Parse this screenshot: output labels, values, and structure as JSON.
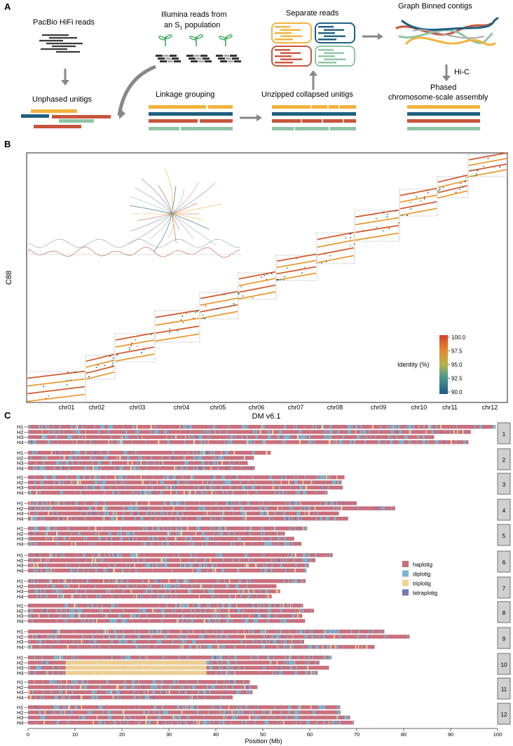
{
  "panels": {
    "a": "A",
    "b": "B",
    "c": "C"
  },
  "panel_a": {
    "hifi": "PacBio HiFi reads",
    "illumina_line1": "Illumina reads from",
    "illumina_line2_pre": "an S",
    "illumina_sub": "1",
    "illumina_line2_post": " population",
    "separate": "Separate reads",
    "graph_binned": "Graph Binned contigs",
    "unphased": "Unphased unitigs",
    "linkage": "Linkage grouping",
    "unzipped": "Unzipped collapsed unitigs",
    "hic": "Hi-C",
    "phased_line1": "Phased",
    "phased_line2": "chromosome-scale assembly",
    "colors": {
      "yellow": "#f2b33d",
      "blue": "#1f5f80",
      "red": "#c8553d",
      "teal": "#8fc4a4",
      "gray": "#888888",
      "dark": "#3a3a3a"
    }
  },
  "panel_b": {
    "ylabel": "C88",
    "xlabel": "DM v6.1",
    "chromosomes": [
      "chr01",
      "chr02",
      "chr03",
      "chr04",
      "chr05",
      "chr06",
      "chr07",
      "chr08",
      "chr09",
      "chr10",
      "chr11",
      "chr12"
    ],
    "legend_title": "Identity (%)",
    "legend_ticks": [
      "100.0",
      "97.5",
      "95.0",
      "92.5",
      "90.0"
    ]
  },
  "panel_c": {
    "xlabel": "Position (Mb)",
    "x_ticks": [
      "0",
      "10",
      "20",
      "30",
      "40",
      "50",
      "60",
      "70",
      "80",
      "90",
      "100"
    ],
    "haplotypes": [
      "H1",
      "H2",
      "H3",
      "H4"
    ],
    "chromosome_numbers": [
      "1",
      "2",
      "3",
      "4",
      "5",
      "6",
      "7",
      "8",
      "9",
      "10",
      "11",
      "12"
    ],
    "chart_data": {
      "type": "bar",
      "x_unit": "Mb",
      "xlim": [
        0,
        100
      ],
      "lengths_mb": [
        [
          99.6,
          94.3,
          86.5,
          93.8
        ],
        [
          51.7,
          48.1,
          46.8,
          48.3
        ],
        [
          67.4,
          66.8,
          67.1,
          63.8
        ],
        [
          70.0,
          78.2,
          66.2,
          68.2
        ],
        [
          59.6,
          54.7,
          56.7,
          58.3
        ],
        [
          64.9,
          61.2,
          59.8,
          59.3
        ],
        [
          59.1,
          52.9,
          53.7,
          51.9
        ],
        [
          58.6,
          60.9,
          58.4,
          59.0
        ],
        [
          75.9,
          81.3,
          58.8,
          73.8
        ],
        [
          64.7,
          62.1,
          64.1,
          61.7
        ],
        [
          47.4,
          48.9,
          47.8,
          43.6
        ],
        [
          66.5,
          66.6,
          68.6,
          69.4
        ]
      ]
    },
    "legend": [
      {
        "label": "haplotig",
        "color": "#c96f7c"
      },
      {
        "label": "diplotig",
        "color": "#7ab4cf"
      },
      {
        "label": "triplotig",
        "color": "#f1d58f"
      },
      {
        "label": "tetraplotig",
        "color": "#7479b8"
      }
    ]
  }
}
